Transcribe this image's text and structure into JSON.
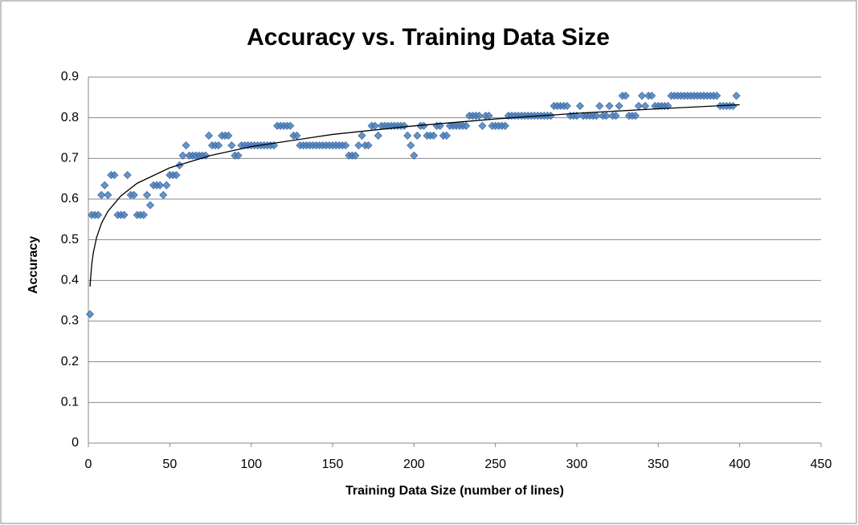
{
  "chart_data": {
    "type": "scatter",
    "title": "Accuracy vs. Training Data Size",
    "x_label": "Training Data Size (number of lines)",
    "y_label": "Accuracy",
    "xlim": [
      0,
      450
    ],
    "xticks": [
      0,
      50,
      100,
      150,
      200,
      250,
      300,
      350,
      400,
      450
    ],
    "ylim": [
      0,
      0.9
    ],
    "yticks": [
      0,
      0.1,
      0.2,
      0.3,
      0.4,
      0.5,
      0.6,
      0.7,
      0.8,
      0.9
    ],
    "grid": true,
    "series": [
      {
        "color": "#4f81bd",
        "x": [
          1,
          2,
          4,
          6,
          8,
          10,
          12,
          14,
          16,
          18,
          20,
          22,
          24,
          26,
          28,
          30,
          32,
          34,
          36,
          38,
          40,
          42,
          44,
          46,
          48,
          50,
          52,
          54,
          56,
          58,
          60,
          62,
          64,
          66,
          68,
          70,
          72,
          74,
          76,
          78,
          80,
          82,
          84,
          86,
          88,
          90,
          92,
          94,
          96,
          98,
          100,
          102,
          104,
          106,
          108,
          110,
          112,
          114,
          116,
          118,
          120,
          122,
          124,
          126,
          128,
          130,
          132,
          134,
          136,
          138,
          140,
          142,
          144,
          146,
          148,
          150,
          152,
          154,
          156,
          158,
          160,
          162,
          164,
          166,
          168,
          170,
          172,
          174,
          176,
          178,
          180,
          182,
          184,
          186,
          188,
          190,
          192,
          194,
          196,
          198,
          200,
          202,
          204,
          206,
          208,
          210,
          212,
          214,
          216,
          218,
          220,
          222,
          224,
          226,
          228,
          230,
          232,
          234,
          236,
          238,
          240,
          242,
          244,
          246,
          248,
          250,
          252,
          254,
          256,
          258,
          260,
          262,
          264,
          266,
          268,
          270,
          272,
          274,
          276,
          278,
          280,
          282,
          284,
          286,
          288,
          290,
          292,
          294,
          296,
          298,
          300,
          302,
          304,
          306,
          308,
          310,
          312,
          314,
          316,
          318,
          320,
          322,
          324,
          326,
          328,
          330,
          332,
          334,
          336,
          338,
          340,
          342,
          344,
          346,
          348,
          350,
          352,
          354,
          356,
          358,
          360,
          362,
          364,
          366,
          368,
          370,
          372,
          374,
          376,
          378,
          380,
          382,
          384,
          386,
          388,
          390,
          392,
          394,
          396,
          398
        ],
        "values": [
          0.317,
          0.561,
          0.561,
          0.561,
          0.61,
          0.634,
          0.61,
          0.659,
          0.659,
          0.561,
          0.561,
          0.561,
          0.659,
          0.61,
          0.61,
          0.561,
          0.561,
          0.561,
          0.61,
          0.585,
          0.634,
          0.634,
          0.634,
          0.61,
          0.634,
          0.659,
          0.659,
          0.659,
          0.683,
          0.707,
          0.732,
          0.707,
          0.707,
          0.707,
          0.707,
          0.707,
          0.707,
          0.756,
          0.732,
          0.732,
          0.732,
          0.756,
          0.756,
          0.756,
          0.732,
          0.707,
          0.707,
          0.732,
          0.732,
          0.732,
          0.732,
          0.732,
          0.732,
          0.732,
          0.732,
          0.732,
          0.732,
          0.732,
          0.78,
          0.78,
          0.78,
          0.78,
          0.78,
          0.756,
          0.756,
          0.732,
          0.732,
          0.732,
          0.732,
          0.732,
          0.732,
          0.732,
          0.732,
          0.732,
          0.732,
          0.732,
          0.732,
          0.732,
          0.732,
          0.732,
          0.707,
          0.707,
          0.707,
          0.732,
          0.756,
          0.732,
          0.732,
          0.78,
          0.78,
          0.756,
          0.78,
          0.78,
          0.78,
          0.78,
          0.78,
          0.78,
          0.78,
          0.78,
          0.756,
          0.732,
          0.707,
          0.756,
          0.78,
          0.78,
          0.756,
          0.756,
          0.756,
          0.78,
          0.78,
          0.756,
          0.756,
          0.78,
          0.78,
          0.78,
          0.78,
          0.78,
          0.78,
          0.805,
          0.805,
          0.805,
          0.805,
          0.78,
          0.805,
          0.805,
          0.78,
          0.78,
          0.78,
          0.78,
          0.78,
          0.805,
          0.805,
          0.805,
          0.805,
          0.805,
          0.805,
          0.805,
          0.805,
          0.805,
          0.805,
          0.805,
          0.805,
          0.805,
          0.805,
          0.829,
          0.829,
          0.829,
          0.829,
          0.829,
          0.805,
          0.805,
          0.805,
          0.829,
          0.805,
          0.805,
          0.805,
          0.805,
          0.805,
          0.829,
          0.805,
          0.805,
          0.829,
          0.805,
          0.805,
          0.829,
          0.854,
          0.854,
          0.805,
          0.805,
          0.805,
          0.829,
          0.854,
          0.829,
          0.854,
          0.854,
          0.829,
          0.829,
          0.829,
          0.829,
          0.829,
          0.854,
          0.854,
          0.854,
          0.854,
          0.854,
          0.854,
          0.854,
          0.854,
          0.854,
          0.854,
          0.854,
          0.854,
          0.854,
          0.854,
          0.854,
          0.829,
          0.829,
          0.829,
          0.829,
          0.829,
          0.854
        ]
      }
    ],
    "trendline": {
      "color": "#000000",
      "x": [
        1,
        2,
        3,
        5,
        8,
        12,
        20,
        30,
        50,
        75,
        100,
        150,
        200,
        250,
        300,
        350,
        400
      ],
      "values": [
        0.385,
        0.437,
        0.467,
        0.505,
        0.54,
        0.57,
        0.608,
        0.639,
        0.677,
        0.707,
        0.729,
        0.759,
        0.78,
        0.797,
        0.811,
        0.822,
        0.832
      ]
    }
  }
}
